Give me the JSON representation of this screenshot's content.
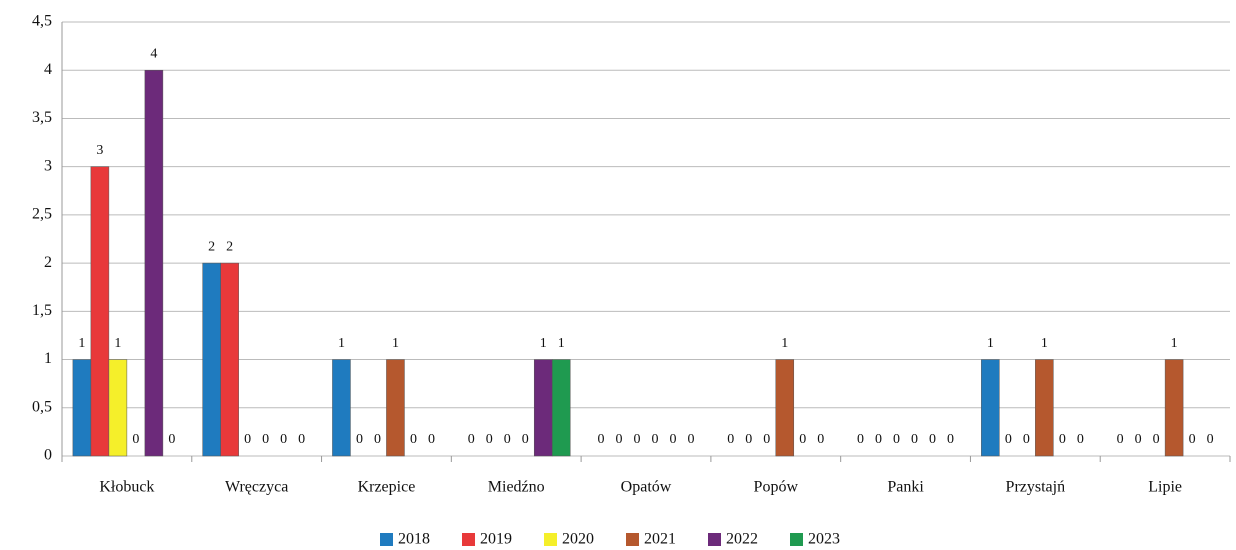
{
  "chart_data": {
    "type": "bar",
    "categories": [
      "Kłobuck",
      "Wręczyca",
      "Krzepice",
      "Miedźno",
      "Opatów",
      "Popów",
      "Panki",
      "Przystajń",
      "Lipie"
    ],
    "series": [
      {
        "name": "2018",
        "color": "#1f7bbf",
        "values": [
          1,
          2,
          1,
          0,
          0,
          0,
          0,
          1,
          0
        ]
      },
      {
        "name": "2019",
        "color": "#e8393a",
        "values": [
          3,
          2,
          0,
          0,
          0,
          0,
          0,
          0,
          0
        ]
      },
      {
        "name": "2020",
        "color": "#f5ef2a",
        "values": [
          1,
          0,
          0,
          0,
          0,
          0,
          0,
          0,
          0
        ]
      },
      {
        "name": "2021",
        "color": "#b5582e",
        "values": [
          0,
          0,
          1,
          0,
          0,
          1,
          0,
          1,
          1
        ]
      },
      {
        "name": "2022",
        "color": "#6c2a7a",
        "values": [
          4,
          0,
          0,
          1,
          0,
          0,
          0,
          0,
          0
        ]
      },
      {
        "name": "2023",
        "color": "#1f9a50",
        "values": [
          0,
          0,
          0,
          1,
          0,
          0,
          0,
          0,
          0
        ]
      }
    ],
    "ylim": [
      0,
      4.5
    ],
    "yticks": [
      0,
      {
        "value": 0.5,
        "label": "0,5"
      },
      1,
      {
        "value": 1.5,
        "label": "1,5"
      },
      2,
      {
        "value": 2.5,
        "label": "2,5"
      },
      3,
      {
        "value": 3.5,
        "label": "3,5"
      },
      4,
      {
        "value": 4.5,
        "label": "4,5"
      }
    ],
    "grid": true,
    "legend": "bottom"
  }
}
